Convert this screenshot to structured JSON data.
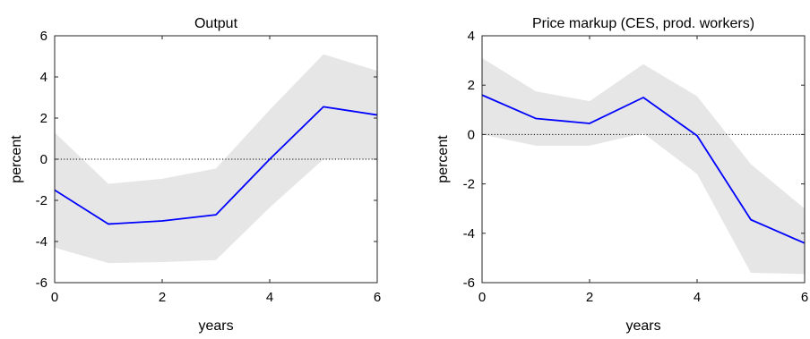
{
  "chart_data": [
    {
      "type": "line",
      "title": "Output",
      "xlabel": "years",
      "ylabel": "percent",
      "xlim": [
        0,
        6
      ],
      "ylim": [
        -6,
        6
      ],
      "xticks": [
        0,
        2,
        4,
        6
      ],
      "yticks": [
        -6,
        -4,
        -2,
        0,
        2,
        4,
        6
      ],
      "grid": false,
      "zero_line": true,
      "colors": {
        "line": "#0000ff",
        "band": "#e6e6e6",
        "zero_line": "#000000"
      },
      "x": [
        0,
        1,
        2,
        3,
        4,
        5,
        6
      ],
      "series": [
        {
          "values": [
            -1.5,
            -3.15,
            -3.0,
            -2.7,
            0.0,
            2.55,
            2.15
          ]
        }
      ],
      "band_upper": [
        1.3,
        -1.2,
        -0.95,
        -0.45,
        2.4,
        5.1,
        4.3
      ],
      "band_lower": [
        -4.3,
        -5.05,
        -5.0,
        -4.9,
        -2.35,
        0.0,
        0.0
      ]
    },
    {
      "type": "line",
      "title": "Price markup (CES, prod. workers)",
      "xlabel": "years",
      "ylabel": "percent",
      "xlim": [
        0,
        6
      ],
      "ylim": [
        -6,
        4
      ],
      "xticks": [
        0,
        2,
        4,
        6
      ],
      "yticks": [
        -6,
        -4,
        -2,
        0,
        2,
        4
      ],
      "grid": false,
      "zero_line": true,
      "colors": {
        "line": "#0000ff",
        "band": "#e6e6e6",
        "zero_line": "#000000"
      },
      "x": [
        0,
        1,
        2,
        3,
        4,
        5,
        6
      ],
      "series": [
        {
          "values": [
            1.6,
            0.65,
            0.45,
            1.5,
            -0.05,
            -3.45,
            -4.4
          ]
        }
      ],
      "band_upper": [
        3.1,
        1.75,
        1.35,
        2.85,
        1.55,
        -1.2,
        -3.0
      ],
      "band_lower": [
        0.0,
        -0.45,
        -0.45,
        0.05,
        -1.6,
        -5.6,
        -5.65
      ]
    }
  ]
}
